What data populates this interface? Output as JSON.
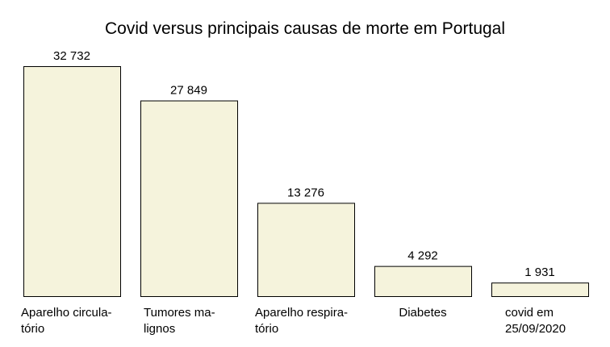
{
  "chart_data": {
    "type": "bar",
    "title": "Covid versus principais causas de morte em Portugal",
    "categories": [
      [
        "Aparelho circula-",
        "tório"
      ],
      [
        "Tumores ma-",
        "lignos"
      ],
      [
        "Aparelho respira-",
        "tório"
      ],
      [
        "Diabetes"
      ],
      [
        "covid em",
        "25/09/2020"
      ]
    ],
    "values": [
      32732,
      27849,
      13276,
      4292,
      1931
    ],
    "data_labels": [
      "32 732",
      "27 849",
      "13 276",
      "4 292",
      "1 931"
    ],
    "xlabel": "",
    "ylabel": "",
    "ylim": [
      0,
      32732
    ],
    "grid": false,
    "colors": {
      "bar_fill": "#f5f3dc",
      "bar_stroke": "#000000"
    }
  }
}
